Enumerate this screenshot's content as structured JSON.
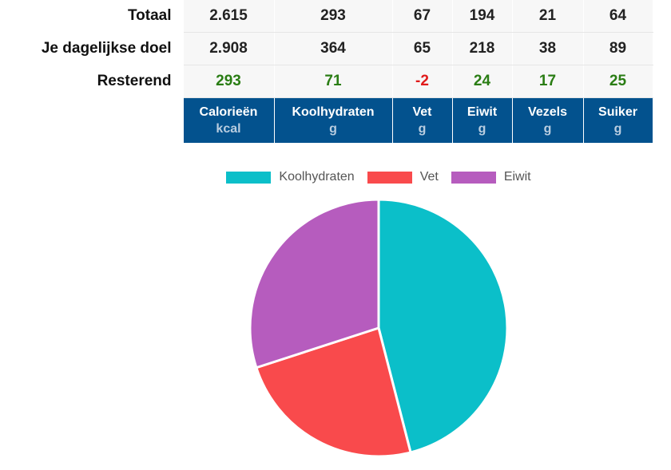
{
  "table": {
    "rows": [
      {
        "label": "Totaal",
        "values": [
          "2.615",
          "293",
          "67",
          "194",
          "21",
          "64"
        ],
        "status": [
          "",
          "",
          "",
          "",
          "",
          ""
        ]
      },
      {
        "label": "Je dagelijkse doel",
        "values": [
          "2.908",
          "364",
          "65",
          "218",
          "38",
          "89"
        ],
        "status": [
          "",
          "",
          "",
          "",
          "",
          ""
        ]
      },
      {
        "label": "Resterend",
        "values": [
          "293",
          "71",
          "-2",
          "24",
          "17",
          "25"
        ],
        "status": [
          "pos",
          "pos",
          "neg",
          "pos",
          "pos",
          "pos"
        ]
      }
    ],
    "columns": [
      {
        "name": "Calorieën",
        "unit": "kcal"
      },
      {
        "name": "Koolhydraten",
        "unit": "g"
      },
      {
        "name": "Vet",
        "unit": "g"
      },
      {
        "name": "Eiwit",
        "unit": "g"
      },
      {
        "name": "Vezels",
        "unit": "g"
      },
      {
        "name": "Suiker",
        "unit": "g"
      }
    ]
  },
  "chart_data": {
    "type": "pie",
    "title": "",
    "labels": [
      "Koolhydraten",
      "Vet",
      "Eiwit"
    ],
    "values": [
      46,
      24,
      30
    ],
    "colors": [
      "#0bbfc9",
      "#f94a4c",
      "#b65cbe"
    ],
    "legend_position": "top"
  },
  "colors": {
    "header_bg": "#03528e",
    "positive": "#2a7d14",
    "negative": "#e01a1a"
  }
}
